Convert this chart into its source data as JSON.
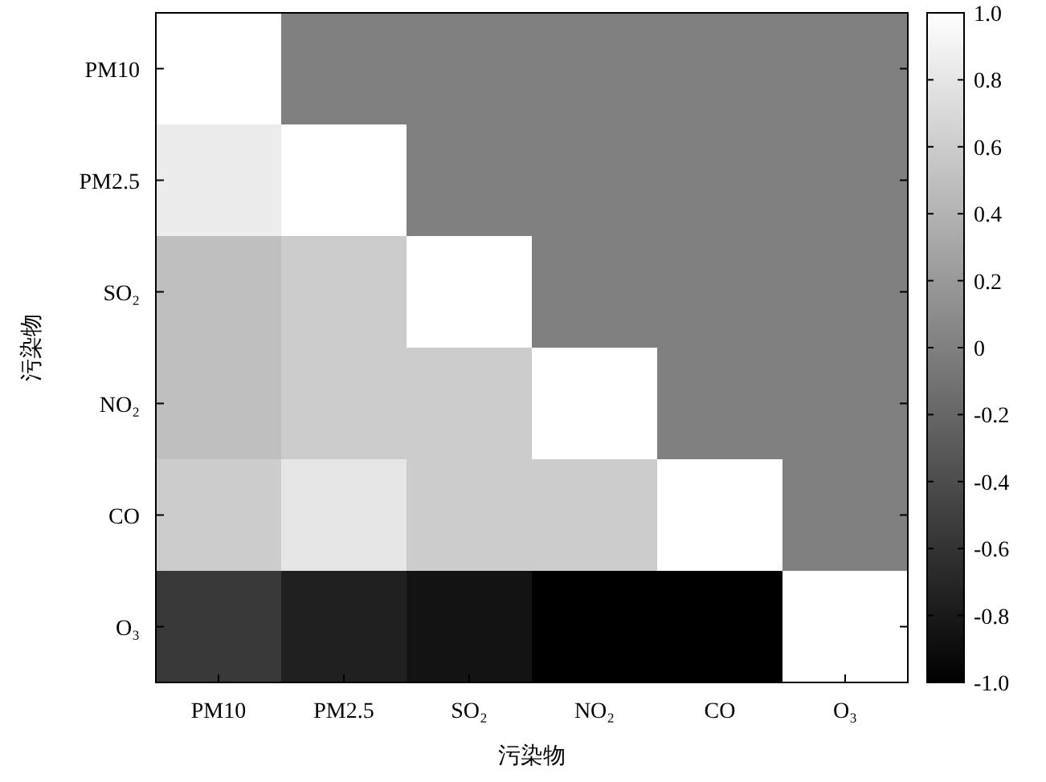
{
  "chart_data": {
    "type": "heatmap",
    "xlabel": "污染物",
    "ylabel": "污染物",
    "categories": [
      "PM10",
      "PM2.5",
      "SO₂",
      "NO₂",
      "CO",
      "O₃"
    ],
    "y_categories": [
      "PM10",
      "PM2.5",
      "SO₂",
      "NO₂",
      "CO",
      "O₃"
    ],
    "cells": [
      [
        1,
        0,
        0,
        0,
        0,
        0
      ],
      [
        0.85,
        1,
        0,
        0,
        0,
        0
      ],
      [
        0.5,
        0.6,
        1,
        0,
        0,
        0
      ],
      [
        0.5,
        0.6,
        0.6,
        1,
        0,
        0
      ],
      [
        0.6,
        0.8,
        0.6,
        0.6,
        1,
        0
      ],
      [
        -0.55,
        -0.75,
        -0.85,
        -1,
        -1,
        1
      ]
    ],
    "clim": [
      -1,
      1
    ],
    "cticks": [
      {
        "value": -1,
        "label": "-1.0"
      },
      -0.8,
      -0.6,
      -0.4,
      -0.2,
      0,
      0.2,
      0.4,
      0.6,
      0.8,
      {
        "value": 1,
        "label": "1.0"
      }
    ]
  }
}
